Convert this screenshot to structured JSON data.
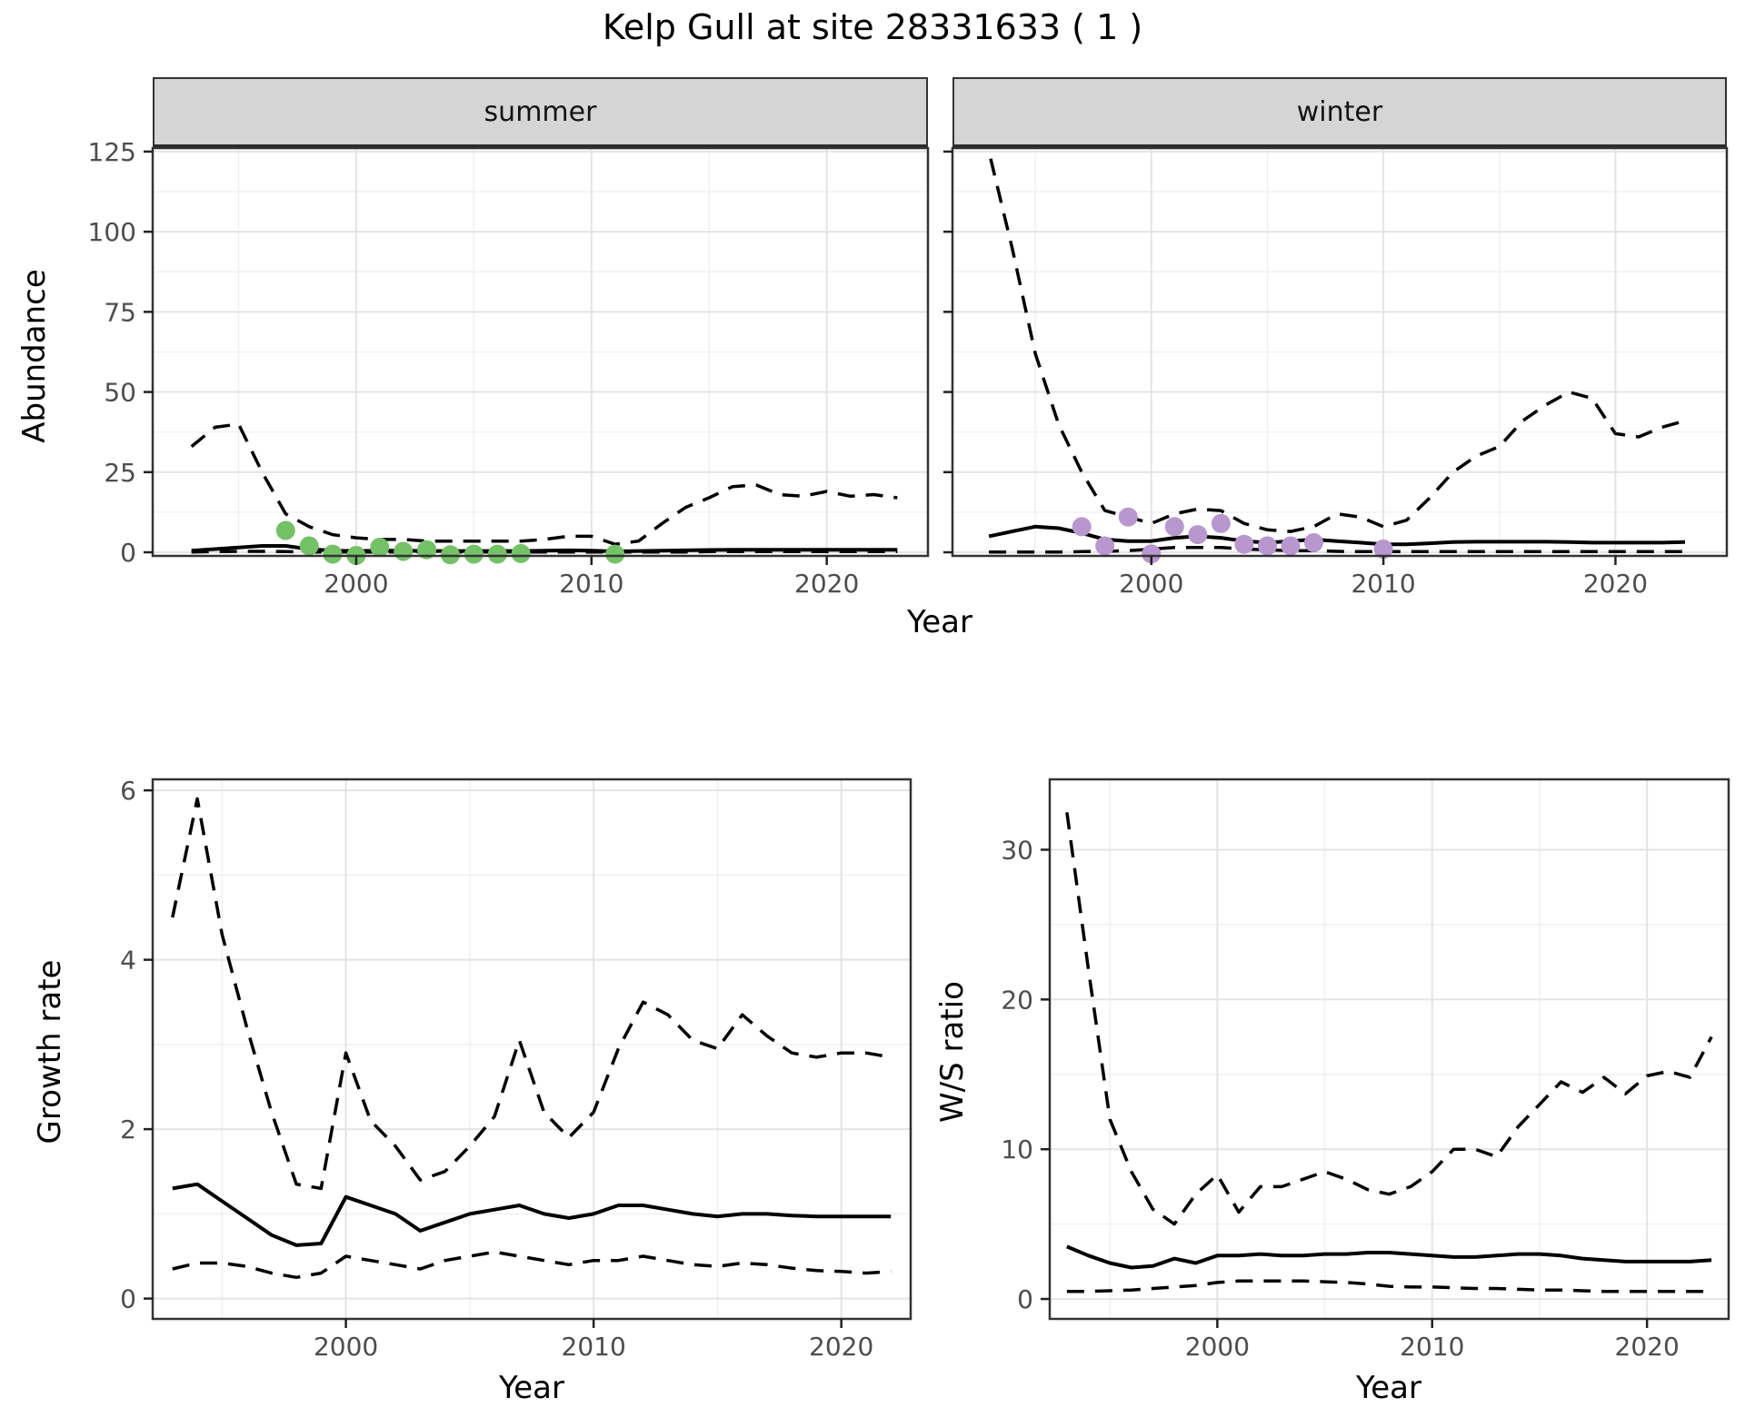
{
  "title": "Kelp Gull at site 28331633 ( 1 )",
  "facets": [
    {
      "label": "summer"
    },
    {
      "label": "winter"
    }
  ],
  "axis_titles": {
    "abundance": "Abundance",
    "growth_rate": "Growth rate",
    "ws_ratio": "W/S ratio",
    "year_top": "Year",
    "year_bottom_left": "Year",
    "year_bottom_right": "Year"
  },
  "colors": {
    "summer_points": "#74c266",
    "winter_points": "#b897cf",
    "line": "#000000",
    "grid_major": "#e4e4e4",
    "grid_minor": "#f0f0f0",
    "strip_bg": "#d5d5d5",
    "panel_border": "#333333",
    "tick_label": "#4d4d4d"
  },
  "chart_data": [
    {
      "id": "summer",
      "type": "line",
      "facet": "summer",
      "x_range": [
        1991.35,
        2024.3
      ],
      "y_range": [
        -1.13,
        126.1
      ],
      "x_ticks": [
        2000,
        2010,
        2020
      ],
      "y_ticks": [
        0,
        25,
        50,
        75,
        100,
        125
      ],
      "x_minor": [
        1995,
        2005,
        2015
      ],
      "y_minor": [
        12.5,
        37.5,
        62.5,
        87.5,
        112.5
      ],
      "show_y_tick_labels": true,
      "grid": true,
      "series": [
        {
          "name": "upper-ci",
          "style": "dashed",
          "x": [
            1993,
            1994,
            1995,
            1996,
            1997,
            1998,
            1999,
            2000,
            2001,
            2002,
            2003,
            2004,
            2005,
            2006,
            2007,
            2008,
            2009,
            2010,
            2011,
            2012,
            2013,
            2014,
            2015,
            2016,
            2017,
            2018,
            2019,
            2020,
            2021,
            2022,
            2023
          ],
          "y": [
            33,
            39,
            40,
            25,
            12,
            8,
            5.5,
            4.5,
            4,
            4,
            3.5,
            3.5,
            3.5,
            3.5,
            3.5,
            4,
            5,
            5,
            2.5,
            3.5,
            9,
            14,
            17,
            20.5,
            21,
            18,
            17.5,
            19,
            17.5,
            18,
            17
          ]
        },
        {
          "name": "median-fit",
          "style": "solid",
          "x": [
            1993,
            1994,
            1995,
            1996,
            1997,
            1998,
            1999,
            2000,
            2001,
            2002,
            2003,
            2004,
            2005,
            2006,
            2007,
            2008,
            2009,
            2010,
            2011,
            2012,
            2013,
            2014,
            2015,
            2016,
            2017,
            2018,
            2019,
            2020,
            2021,
            2022,
            2023
          ],
          "y": [
            0.5,
            1,
            1.5,
            2,
            2,
            1,
            0.5,
            0.4,
            0.5,
            0.5,
            0.4,
            0.4,
            0.4,
            0.4,
            0.4,
            0.5,
            0.6,
            0.5,
            0.3,
            0.4,
            0.5,
            0.6,
            0.7,
            0.8,
            0.8,
            0.8,
            0.8,
            0.8,
            0.8,
            0.8,
            0.8
          ]
        },
        {
          "name": "lower-ci",
          "style": "dashed",
          "x": [
            1993,
            1994,
            1995,
            1996,
            1997,
            1998,
            1999,
            2000,
            2001,
            2002,
            2003,
            2004,
            2005,
            2006,
            2007,
            2008,
            2009,
            2010,
            2011,
            2012,
            2013,
            2014,
            2015,
            2016,
            2017,
            2018,
            2019,
            2020,
            2021,
            2022,
            2023
          ],
          "y": [
            0.1,
            0.2,
            0.3,
            0.3,
            0.2,
            0.1,
            0.1,
            0.1,
            0.1,
            0.1,
            0.1,
            0.1,
            0.1,
            0.1,
            0.1,
            0.1,
            0.1,
            0.1,
            0.1,
            0.1,
            0.1,
            0.1,
            0.2,
            0.2,
            0.2,
            0.2,
            0.2,
            0.2,
            0.2,
            0.2,
            0.2
          ]
        }
      ],
      "points": {
        "name": "summer-observations",
        "color_key": "summer_points",
        "x": [
          1997,
          1998,
          1999,
          2000,
          2001,
          2002,
          2003,
          2004,
          2005,
          2006,
          2007,
          2011
        ],
        "y": [
          6.8,
          2,
          -0.6,
          -1,
          1.6,
          0.3,
          0.8,
          -0.8,
          -0.6,
          -0.6,
          -0.4,
          -0.6
        ]
      }
    },
    {
      "id": "winter",
      "type": "line",
      "facet": "winter",
      "x_range": [
        1991.43,
        2024.8
      ],
      "y_range": [
        -1.13,
        126.1
      ],
      "x_ticks": [
        2000,
        2010,
        2020
      ],
      "y_ticks": [
        0,
        25,
        50,
        75,
        100,
        125
      ],
      "x_minor": [
        1995,
        2005,
        2015
      ],
      "y_minor": [
        12.5,
        37.5,
        62.5,
        87.5,
        112.5
      ],
      "show_y_tick_labels": false,
      "grid": true,
      "series": [
        {
          "name": "upper-ci",
          "style": "dashed",
          "x": [
            1992.6,
            1993,
            1994,
            1995,
            1996,
            1997,
            1998,
            1999,
            2000,
            2001,
            2002,
            2003,
            2004,
            2005,
            2006,
            2007,
            2008,
            2009,
            2010,
            2011,
            2012,
            2013,
            2014,
            2015,
            2016,
            2017,
            2018,
            2019,
            2020,
            2021,
            2022,
            2023
          ],
          "y": [
            140,
            125,
            95,
            62,
            40,
            25,
            13,
            11,
            9,
            12,
            13.5,
            13,
            9,
            7,
            6.5,
            8,
            12,
            11,
            8,
            10,
            17,
            25,
            30,
            33,
            41,
            46,
            50,
            48,
            37,
            36,
            39,
            41
          ]
        },
        {
          "name": "median-fit",
          "style": "solid",
          "x": [
            1993,
            1994,
            1995,
            1996,
            1997,
            1998,
            1999,
            2000,
            2001,
            2002,
            2003,
            2004,
            2005,
            2006,
            2007,
            2008,
            2009,
            2010,
            2011,
            2012,
            2013,
            2014,
            2015,
            2016,
            2017,
            2018,
            2019,
            2020,
            2021,
            2022,
            2023
          ],
          "y": [
            5,
            6.5,
            8,
            7.5,
            6,
            4,
            3.5,
            3.5,
            4.5,
            5,
            4.5,
            3.5,
            3,
            3.5,
            4,
            3.5,
            3,
            2.5,
            2.5,
            2.8,
            3.2,
            3.3,
            3.3,
            3.3,
            3.3,
            3.2,
            3,
            3,
            3,
            3,
            3.2
          ]
        },
        {
          "name": "lower-ci",
          "style": "dashed",
          "x": [
            1993,
            1994,
            1995,
            1996,
            1997,
            1998,
            1999,
            2000,
            2001,
            2002,
            2003,
            2004,
            2005,
            2006,
            2007,
            2008,
            2009,
            2010,
            2011,
            2012,
            2013,
            2014,
            2015,
            2016,
            2017,
            2018,
            2019,
            2020,
            2021,
            2022,
            2023
          ],
          "y": [
            0.1,
            0.1,
            0.1,
            0.1,
            0.2,
            0.3,
            0.5,
            1,
            1.5,
            1.5,
            1.5,
            1,
            0.8,
            0.5,
            0.5,
            0.3,
            0.2,
            0.2,
            0.2,
            0.2,
            0.2,
            0.2,
            0.2,
            0.2,
            0.2,
            0.2,
            0.2,
            0.2,
            0.2,
            0.2,
            0.2
          ]
        }
      ],
      "points": {
        "name": "winter-observations",
        "color_key": "winter_points",
        "x": [
          1997,
          1998,
          1999,
          2000,
          2001,
          2002,
          2003,
          2004,
          2005,
          2006,
          2007,
          2010
        ],
        "y": [
          8,
          2,
          11,
          -0.5,
          8,
          5.5,
          9,
          2.5,
          2,
          2,
          3,
          1
        ]
      }
    },
    {
      "id": "growth",
      "type": "line",
      "facet": null,
      "x_range": [
        1992.2,
        2022.8
      ],
      "y_range": [
        -0.24,
        6.13
      ],
      "x_ticks": [
        2000,
        2010,
        2020
      ],
      "y_ticks": [
        0,
        2,
        4,
        6
      ],
      "x_minor": [
        1995,
        2005,
        2015
      ],
      "y_minor": [
        1,
        3,
        5
      ],
      "show_y_tick_labels": true,
      "grid": true,
      "series": [
        {
          "name": "upper-ci",
          "style": "dashed",
          "x": [
            1993,
            1994,
            1995,
            1996,
            1997,
            1998,
            1999,
            2000,
            2001,
            2002,
            2003,
            2004,
            2005,
            2006,
            2007,
            2008,
            2009,
            2010,
            2011,
            2012,
            2013,
            2014,
            2015,
            2016,
            2017,
            2018,
            2019,
            2020,
            2021,
            2022
          ],
          "y": [
            4.5,
            5.9,
            4.3,
            3.2,
            2.2,
            1.35,
            1.3,
            2.9,
            2.1,
            1.8,
            1.4,
            1.5,
            1.8,
            2.15,
            3.05,
            2.2,
            1.9,
            2.2,
            2.95,
            3.5,
            3.35,
            3.05,
            2.95,
            3.35,
            3.1,
            2.9,
            2.85,
            2.9,
            2.9,
            2.85
          ]
        },
        {
          "name": "median-fit",
          "style": "solid",
          "x": [
            1993,
            1994,
            1995,
            1996,
            1997,
            1998,
            1999,
            2000,
            2001,
            2002,
            2003,
            2004,
            2005,
            2006,
            2007,
            2008,
            2009,
            2010,
            2011,
            2012,
            2013,
            2014,
            2015,
            2016,
            2017,
            2018,
            2019,
            2020,
            2021,
            2022
          ],
          "y": [
            1.3,
            1.35,
            1.15,
            0.95,
            0.75,
            0.63,
            0.65,
            1.2,
            1.1,
            1.0,
            0.8,
            0.9,
            1.0,
            1.05,
            1.1,
            1.0,
            0.95,
            1.0,
            1.1,
            1.1,
            1.05,
            1.0,
            0.97,
            1.0,
            1.0,
            0.98,
            0.97,
            0.97,
            0.97,
            0.97
          ]
        },
        {
          "name": "lower-ci",
          "style": "dashed",
          "x": [
            1993,
            1994,
            1995,
            1996,
            1997,
            1998,
            1999,
            2000,
            2001,
            2002,
            2003,
            2004,
            2005,
            2006,
            2007,
            2008,
            2009,
            2010,
            2011,
            2012,
            2013,
            2014,
            2015,
            2016,
            2017,
            2018,
            2019,
            2020,
            2021,
            2022
          ],
          "y": [
            0.35,
            0.42,
            0.42,
            0.38,
            0.3,
            0.25,
            0.3,
            0.5,
            0.45,
            0.4,
            0.35,
            0.45,
            0.5,
            0.55,
            0.5,
            0.45,
            0.4,
            0.45,
            0.45,
            0.5,
            0.45,
            0.4,
            0.38,
            0.42,
            0.4,
            0.36,
            0.33,
            0.32,
            0.3,
            0.32
          ]
        }
      ],
      "points": null
    },
    {
      "id": "ws",
      "type": "line",
      "facet": null,
      "x_range": [
        1992.2,
        2023.8
      ],
      "y_range": [
        -1.33,
        34.7
      ],
      "x_ticks": [
        2000,
        2010,
        2020
      ],
      "y_ticks": [
        0,
        10,
        20,
        30
      ],
      "x_minor": [
        1995,
        2005,
        2015
      ],
      "y_minor": [
        5,
        15,
        25
      ],
      "show_y_tick_labels": true,
      "grid": true,
      "series": [
        {
          "name": "upper-ci",
          "style": "dashed",
          "x": [
            1993,
            1994,
            1995,
            1996,
            1997,
            1998,
            1999,
            2000,
            2001,
            2002,
            2003,
            2004,
            2005,
            2006,
            2007,
            2008,
            2009,
            2010,
            2011,
            2012,
            2013,
            2014,
            2015,
            2016,
            2017,
            2018,
            2019,
            2020,
            2021,
            2022,
            2023
          ],
          "y": [
            32.5,
            22,
            12,
            8.5,
            6,
            5,
            7,
            8.3,
            5.8,
            7.5,
            7.5,
            8,
            8.5,
            8,
            7.3,
            7,
            7.5,
            8.5,
            10,
            10,
            9.5,
            11.5,
            13,
            14.5,
            13.8,
            14.8,
            13.7,
            14.9,
            15.2,
            14.8,
            17.5
          ]
        },
        {
          "name": "median-fit",
          "style": "solid",
          "x": [
            1993,
            1994,
            1995,
            1996,
            1997,
            1998,
            1999,
            2000,
            2001,
            2002,
            2003,
            2004,
            2005,
            2006,
            2007,
            2008,
            2009,
            2010,
            2011,
            2012,
            2013,
            2014,
            2015,
            2016,
            2017,
            2018,
            2019,
            2020,
            2021,
            2022,
            2023
          ],
          "y": [
            3.5,
            2.9,
            2.4,
            2.1,
            2.2,
            2.7,
            2.4,
            2.9,
            2.9,
            3,
            2.9,
            2.9,
            3,
            3,
            3.1,
            3.1,
            3,
            2.9,
            2.8,
            2.8,
            2.9,
            3,
            3,
            2.9,
            2.7,
            2.6,
            2.5,
            2.5,
            2.5,
            2.5,
            2.6
          ]
        },
        {
          "name": "lower-ci",
          "style": "dashed",
          "x": [
            1993,
            1994,
            1995,
            1996,
            1997,
            1998,
            1999,
            2000,
            2001,
            2002,
            2003,
            2004,
            2005,
            2006,
            2007,
            2008,
            2009,
            2010,
            2011,
            2012,
            2013,
            2014,
            2015,
            2016,
            2017,
            2018,
            2019,
            2020,
            2021,
            2022,
            2023
          ],
          "y": [
            0.5,
            0.5,
            0.55,
            0.6,
            0.7,
            0.8,
            0.9,
            1.1,
            1.2,
            1.2,
            1.2,
            1.2,
            1.15,
            1.1,
            1,
            0.85,
            0.8,
            0.8,
            0.75,
            0.7,
            0.7,
            0.65,
            0.6,
            0.6,
            0.55,
            0.5,
            0.5,
            0.5,
            0.5,
            0.5,
            0.5
          ]
        }
      ],
      "points": null
    }
  ]
}
